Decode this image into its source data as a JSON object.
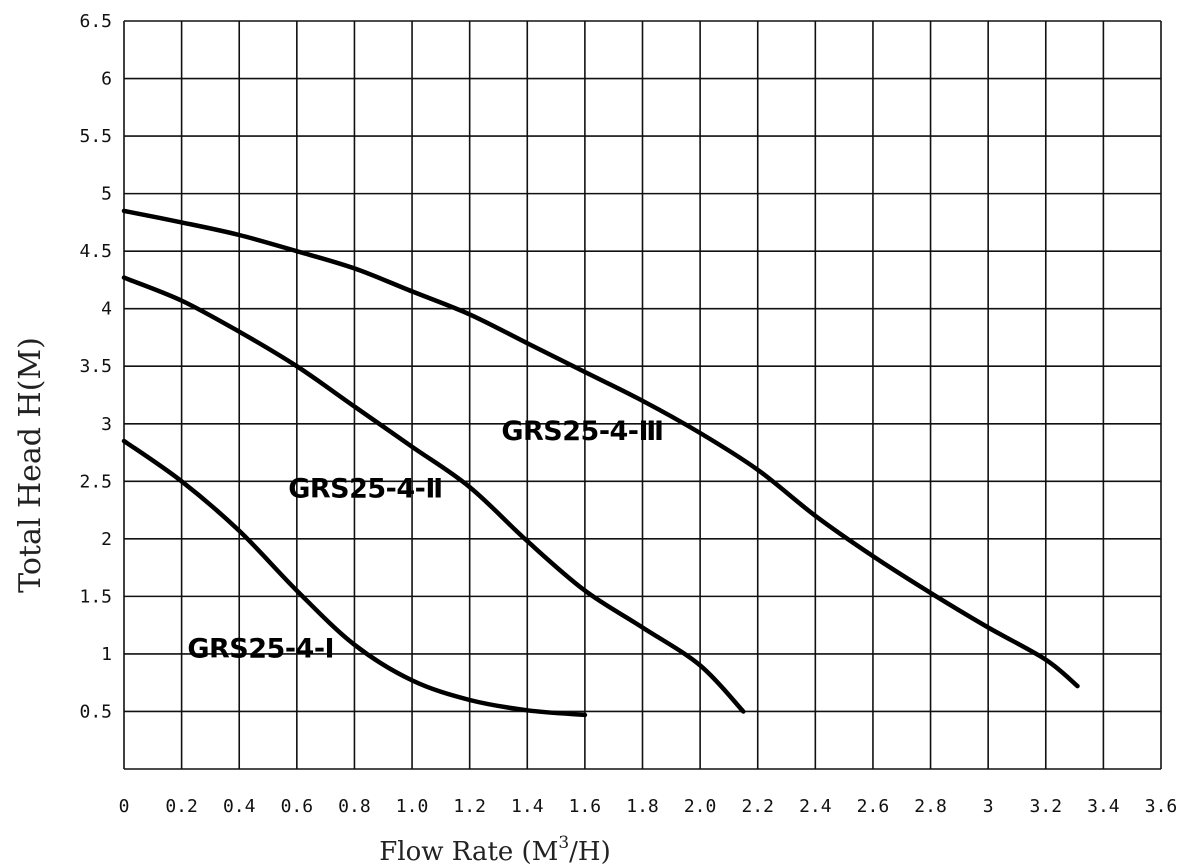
{
  "chart_data": {
    "type": "line",
    "xlabel": "Flow Rate (M",
    "xlabel_sup": "3",
    "xlabel_tail": "/H)",
    "ylabel": "Total Head H(M)",
    "xlim": [
      0,
      3.6
    ],
    "ylim": [
      0,
      6.5
    ],
    "x_ticks": [
      {
        "v": 0,
        "label": "0"
      },
      {
        "v": 0.2,
        "label": "0.2"
      },
      {
        "v": 0.4,
        "label": "0.4"
      },
      {
        "v": 0.6,
        "label": "0.6"
      },
      {
        "v": 0.8,
        "label": "0.8"
      },
      {
        "v": 1.0,
        "label": "1.0"
      },
      {
        "v": 1.2,
        "label": "1.2"
      },
      {
        "v": 1.4,
        "label": "1.4"
      },
      {
        "v": 1.6,
        "label": "1.6"
      },
      {
        "v": 1.8,
        "label": "1.8"
      },
      {
        "v": 2.0,
        "label": "2.0"
      },
      {
        "v": 2.2,
        "label": "2.2"
      },
      {
        "v": 2.4,
        "label": "2.4"
      },
      {
        "v": 2.6,
        "label": "2.6"
      },
      {
        "v": 2.8,
        "label": "2.8"
      },
      {
        "v": 3.0,
        "label": "3"
      },
      {
        "v": 3.2,
        "label": "3.2"
      },
      {
        "v": 3.4,
        "label": "3.4"
      },
      {
        "v": 3.6,
        "label": "3.6"
      }
    ],
    "y_ticks": [
      {
        "v": 0.5,
        "label": "0.5"
      },
      {
        "v": 1,
        "label": "1"
      },
      {
        "v": 1.5,
        "label": "1.5"
      },
      {
        "v": 2,
        "label": "2"
      },
      {
        "v": 2.5,
        "label": "2.5"
      },
      {
        "v": 3,
        "label": "3"
      },
      {
        "v": 3.5,
        "label": "3.5"
      },
      {
        "v": 4,
        "label": "4"
      },
      {
        "v": 4.5,
        "label": "4.5"
      },
      {
        "v": 5,
        "label": "5"
      },
      {
        "v": 5.5,
        "label": "5.5"
      },
      {
        "v": 6,
        "label": "6"
      },
      {
        "v": 6.5,
        "label": "6.5"
      }
    ],
    "grid": true,
    "series": [
      {
        "name": "GRS25-4-Ⅰ",
        "points": [
          [
            0,
            2.85
          ],
          [
            0.2,
            2.5
          ],
          [
            0.4,
            2.07
          ],
          [
            0.6,
            1.55
          ],
          [
            0.8,
            1.08
          ],
          [
            1.0,
            0.77
          ],
          [
            1.2,
            0.6
          ],
          [
            1.4,
            0.51
          ],
          [
            1.6,
            0.47
          ]
        ]
      },
      {
        "name": "GRS25-4-Ⅱ",
        "points": [
          [
            0,
            4.27
          ],
          [
            0.2,
            4.07
          ],
          [
            0.4,
            3.8
          ],
          [
            0.6,
            3.5
          ],
          [
            0.8,
            3.15
          ],
          [
            1.0,
            2.8
          ],
          [
            1.2,
            2.45
          ],
          [
            1.4,
            1.98
          ],
          [
            1.6,
            1.55
          ],
          [
            1.8,
            1.23
          ],
          [
            2.0,
            0.9
          ],
          [
            2.15,
            0.5
          ]
        ]
      },
      {
        "name": "GRS25-4-Ⅲ",
        "points": [
          [
            0,
            4.85
          ],
          [
            0.2,
            4.75
          ],
          [
            0.4,
            4.64
          ],
          [
            0.6,
            4.5
          ],
          [
            0.8,
            4.35
          ],
          [
            1.0,
            4.15
          ],
          [
            1.2,
            3.95
          ],
          [
            1.4,
            3.7
          ],
          [
            1.6,
            3.45
          ],
          [
            1.8,
            3.2
          ],
          [
            2.0,
            2.92
          ],
          [
            2.2,
            2.6
          ],
          [
            2.4,
            2.2
          ],
          [
            2.6,
            1.85
          ],
          [
            2.8,
            1.53
          ],
          [
            3.0,
            1.23
          ],
          [
            3.2,
            0.95
          ],
          [
            3.31,
            0.72
          ]
        ]
      }
    ],
    "labels": [
      {
        "text": "GRS25-4-Ⅰ",
        "x": 0.22,
        "y": 0.97
      },
      {
        "text": "GRS25-4-Ⅱ",
        "x": 0.57,
        "y": 2.36
      },
      {
        "text": "GRS25-4-Ⅲ",
        "x": 1.31,
        "y": 2.86
      }
    ]
  }
}
